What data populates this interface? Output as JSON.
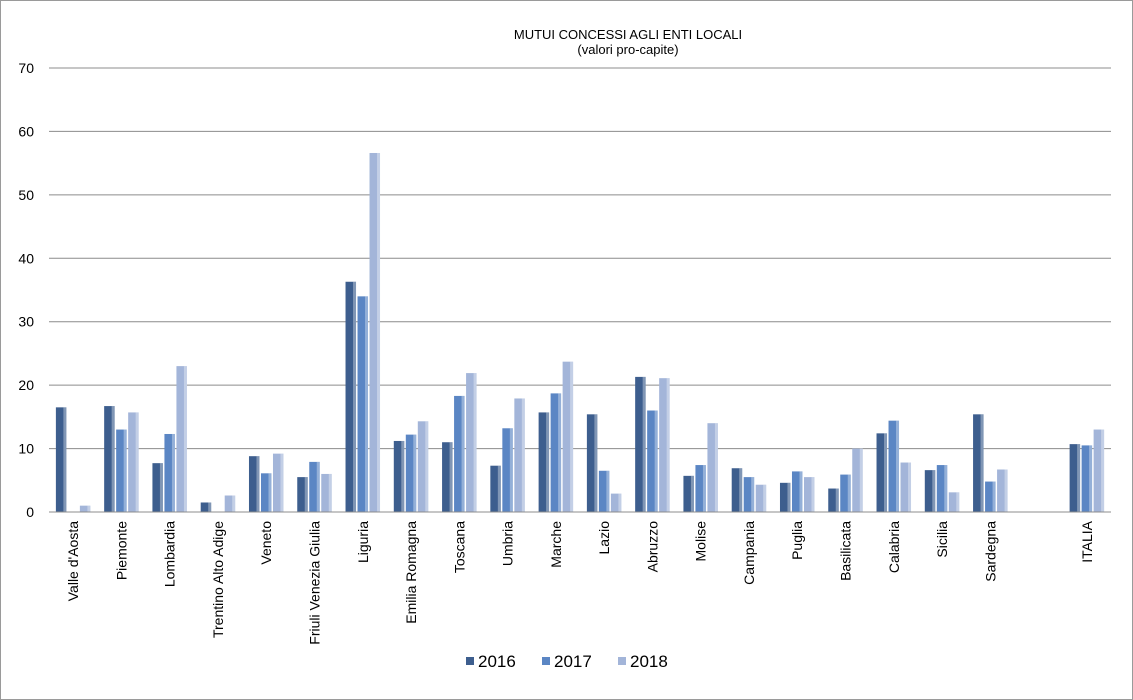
{
  "chart_data": {
    "type": "bar",
    "title": "MUTUI CONCESSI AGLI ENTI LOCALI",
    "subtitle": "(valori pro-capite)",
    "xlabel": "",
    "ylabel": "",
    "ylim": [
      0,
      70
    ],
    "yticks": [
      0,
      10,
      20,
      30,
      40,
      50,
      60,
      70
    ],
    "grid": true,
    "legend_position": "bottom",
    "categories": [
      "Valle d'Aosta",
      "Piemonte",
      "Lombardia",
      "Trentino Alto Adige",
      "Veneto",
      "Friuli Venezia Giulia",
      "Liguria",
      "Emilia Romagna",
      "Toscana",
      "Umbria",
      "Marche",
      "Lazio",
      "Abruzzo",
      "Molise",
      "Campania",
      "Puglia",
      "Basilicata",
      "Calabria",
      "Sicilia",
      "Sardegna",
      "",
      "ITALIA"
    ],
    "series": [
      {
        "name": "2016",
        "color": "#3d5e8e",
        "values": [
          16.5,
          16.7,
          7.7,
          1.5,
          8.8,
          5.5,
          36.3,
          11.2,
          11.0,
          7.3,
          15.7,
          15.4,
          21.3,
          5.7,
          6.9,
          4.6,
          3.7,
          12.4,
          6.6,
          15.4,
          null,
          10.7
        ]
      },
      {
        "name": "2017",
        "color": "#5b86c4",
        "values": [
          0,
          13.0,
          12.3,
          0,
          6.1,
          7.9,
          34.0,
          12.2,
          18.3,
          13.2,
          18.7,
          6.5,
          16.0,
          7.4,
          5.5,
          6.4,
          5.9,
          14.4,
          7.4,
          4.8,
          null,
          10.5
        ]
      },
      {
        "name": "2018",
        "color": "#a3b5d9",
        "values": [
          1.0,
          15.7,
          23.0,
          2.6,
          9.2,
          6.0,
          56.6,
          14.3,
          21.9,
          17.9,
          23.7,
          2.9,
          21.1,
          14.0,
          4.3,
          5.5,
          10.0,
          7.8,
          3.1,
          6.7,
          null,
          13.0
        ]
      }
    ]
  }
}
